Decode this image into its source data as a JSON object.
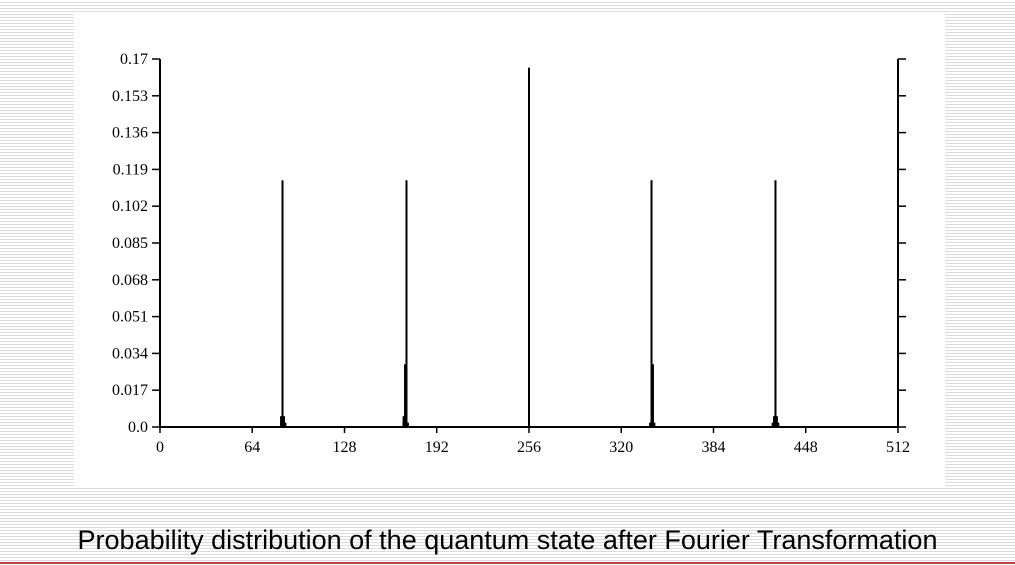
{
  "slide": {
    "caption": "Probability distribution of the quantum state after Fourier Transformation",
    "accent_color": "#b4464b"
  },
  "chart_data": {
    "type": "bar",
    "title": "",
    "xlabel": "",
    "ylabel": "",
    "xlim": [
      0,
      512
    ],
    "ylim": [
      0,
      0.17
    ],
    "xticks": [
      "0",
      "64",
      "128",
      "192",
      "256",
      "320",
      "384",
      "448",
      "512"
    ],
    "yticks": [
      "0.0",
      "0.017",
      "0.034",
      "0.051",
      "0.068",
      "0.085",
      "0.102",
      "0.119",
      "0.136",
      "0.153",
      "0.17"
    ],
    "grid": false,
    "series": [
      {
        "points": [
          {
            "x": 83,
            "y": 0.0
          },
          {
            "x": 84,
            "y": 0.002
          },
          {
            "x": 84,
            "y": 0.005
          },
          {
            "x": 85,
            "y": 0.029
          },
          {
            "x": 85,
            "y": 0.114
          },
          {
            "x": 86,
            "y": 0.005
          },
          {
            "x": 87,
            "y": 0.002
          },
          {
            "x": 169,
            "y": 0.002
          },
          {
            "x": 169,
            "y": 0.005
          },
          {
            "x": 170,
            "y": 0.029
          },
          {
            "x": 171,
            "y": 0.114
          },
          {
            "x": 171,
            "y": 0.005
          },
          {
            "x": 172,
            "y": 0.002
          },
          {
            "x": 256,
            "y": 0.166
          },
          {
            "x": 340,
            "y": 0.002
          },
          {
            "x": 341,
            "y": 0.005
          },
          {
            "x": 341,
            "y": 0.114
          },
          {
            "x": 342,
            "y": 0.029
          },
          {
            "x": 342,
            "y": 0.005
          },
          {
            "x": 343,
            "y": 0.002
          },
          {
            "x": 425,
            "y": 0.002
          },
          {
            "x": 426,
            "y": 0.005
          },
          {
            "x": 427,
            "y": 0.114
          },
          {
            "x": 427,
            "y": 0.029
          },
          {
            "x": 428,
            "y": 0.005
          },
          {
            "x": 429,
            "y": 0.002
          }
        ]
      }
    ]
  }
}
